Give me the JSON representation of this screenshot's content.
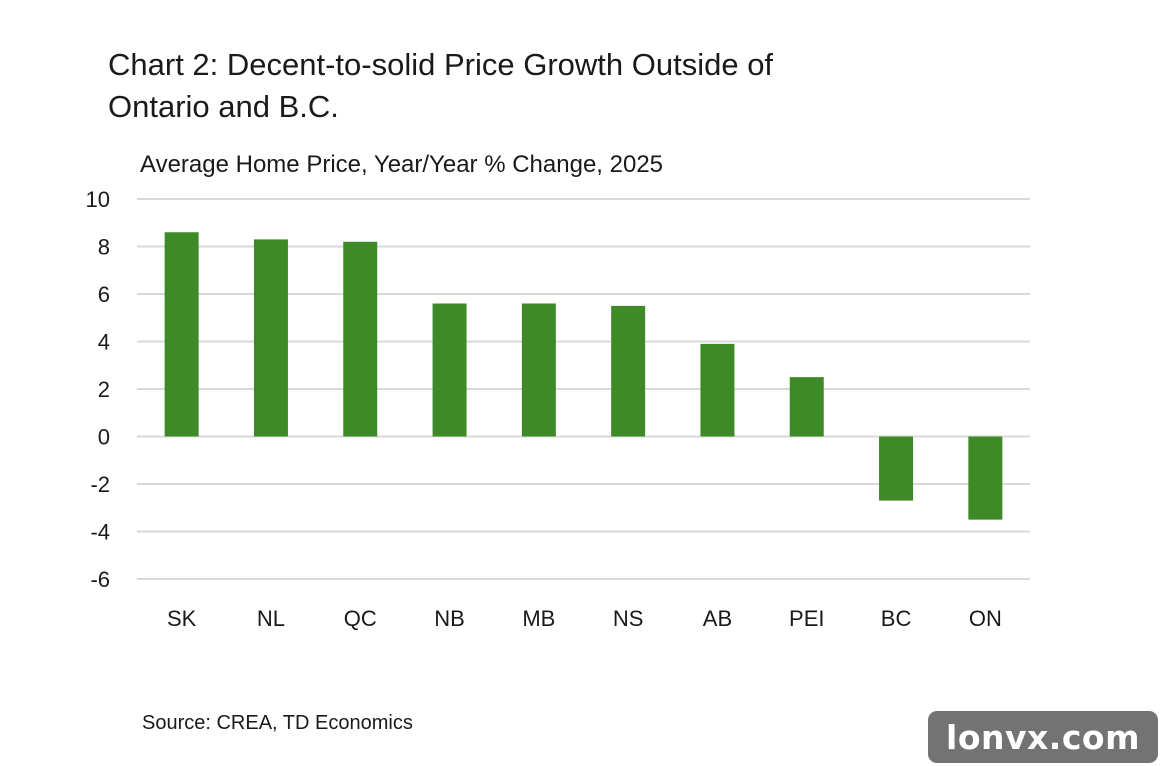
{
  "chart_data": {
    "type": "bar",
    "title": "Chart 2: Decent-to-solid Price Growth Outside of Ontario and B.C.",
    "subtitle": "Average Home Price, Year/Year % Change, 2025",
    "categories": [
      "SK",
      "NL",
      "QC",
      "NB",
      "MB",
      "NS",
      "AB",
      "PEI",
      "BC",
      "ON"
    ],
    "series": [
      {
        "values": [
          8.6,
          8.3,
          8.2,
          5.6,
          5.6,
          5.5,
          3.9,
          2.5,
          -2.7,
          -3.5
        ]
      }
    ],
    "ylim": [
      -6,
      10
    ],
    "yticks": [
      "10",
      "8",
      "6",
      "4",
      "2",
      "0",
      "-2",
      "-4",
      "-6"
    ],
    "ytick_values": [
      10,
      8,
      6,
      4,
      2,
      0,
      -2,
      -4,
      -6
    ],
    "grid": true,
    "legend": "none",
    "bar_color": "#3d8a27",
    "grid_color": "#d9d9d9"
  },
  "source": "Source: CREA, TD Economics",
  "watermark": "lonvx.com"
}
